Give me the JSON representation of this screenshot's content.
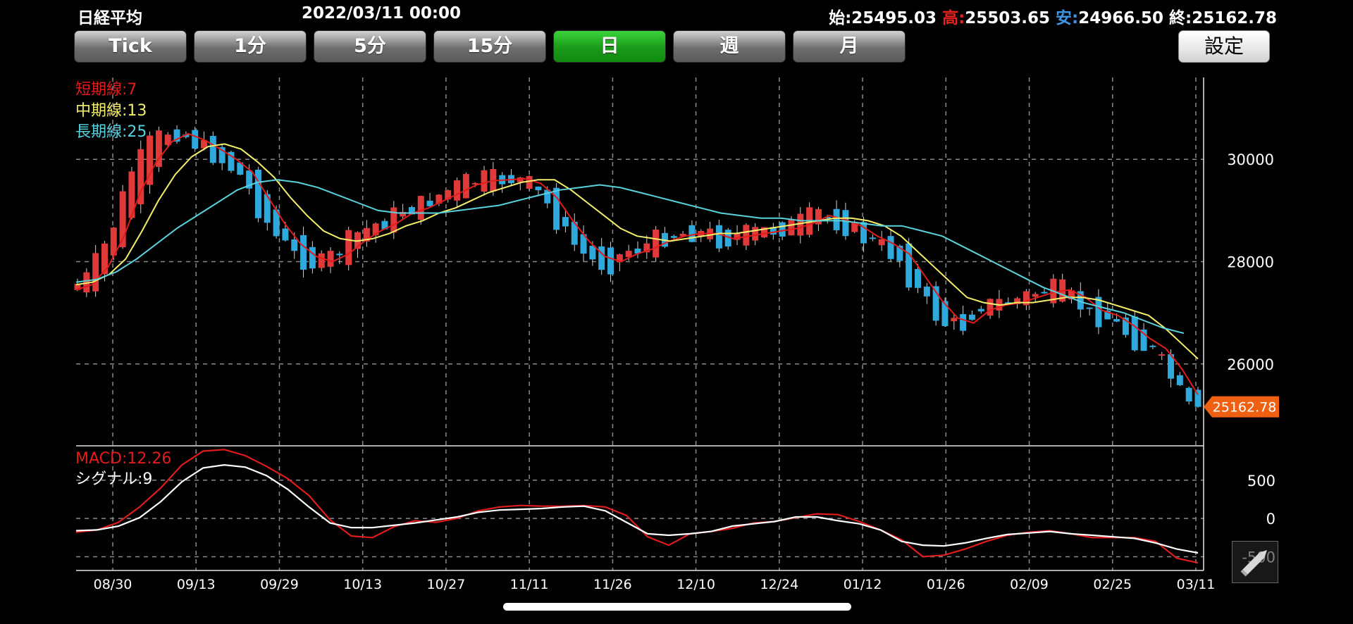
{
  "header": {
    "title": "日経平均",
    "datetime": "2022/03/11 00:00",
    "open_label": "始:",
    "open_value": "25495.03",
    "high_label": "高:",
    "high_value": "25503.65",
    "low_label": "安:",
    "low_value": "24966.50",
    "close_label": "終:",
    "close_value": "25162.78"
  },
  "timeframes": [
    {
      "label": "Tick",
      "active": false
    },
    {
      "label": "1分",
      "active": false
    },
    {
      "label": "5分",
      "active": false
    },
    {
      "label": "15分",
      "active": false
    },
    {
      "label": "日",
      "active": true
    },
    {
      "label": "週",
      "active": false
    },
    {
      "label": "月",
      "active": false
    }
  ],
  "settings_label": "設定",
  "icons": {
    "pencil": "pencil-icon"
  },
  "colors": {
    "up_candle": "#e0393a",
    "down_candle": "#2fa8dc",
    "short_ma": "#e01c1c",
    "mid_ma": "#f3ef6a",
    "long_ma": "#5ad2dc",
    "macd": "#e01c1c",
    "signal": "#ffffff",
    "price_tag": "#f06012",
    "active_button": "#1a9a1a"
  },
  "chart_data": [
    {
      "type": "candlestick",
      "title": "",
      "legend": [
        {
          "label": "短期線:7",
          "color": "#e01c1c"
        },
        {
          "label": "中期線:13",
          "color": "#f3ef6a"
        },
        {
          "label": "長期線:25",
          "color": "#5ad2dc"
        }
      ],
      "legend_position": "top-left",
      "x_tick_labels": [
        "08/30",
        "09/13",
        "09/29",
        "10/13",
        "10/27",
        "11/11",
        "11/26",
        "12/10",
        "12/24",
        "01/12",
        "01/26",
        "02/09",
        "02/25",
        "03/11"
      ],
      "y_ticks": [
        26000,
        28000,
        30000
      ],
      "ylim": [
        24400,
        31600
      ],
      "grid": true,
      "current_price_label": "25162.78",
      "series": [
        {
          "name": "短期線:7",
          "values": [
            27450,
            27550,
            27900,
            28500,
            29350,
            29950,
            30350,
            30500,
            30380,
            30200,
            30000,
            29750,
            29250,
            28750,
            28350,
            28100,
            28000,
            28150,
            28400,
            28600,
            28750,
            28950,
            29050,
            29200,
            29350,
            29500,
            29580,
            29600,
            29620,
            29530,
            29250,
            28800,
            28400,
            28100,
            28000,
            28150,
            28250,
            28400,
            28500,
            28550,
            28550,
            28450,
            28500,
            28550,
            28600,
            28650,
            28750,
            28900,
            28820,
            28700,
            28500,
            28350,
            28150,
            27700,
            27250,
            26900,
            26800,
            27050,
            27150,
            27200,
            27300,
            27400,
            27450,
            27300,
            27050,
            26950,
            26750,
            26500,
            26300,
            25900,
            25400
          ]
        },
        {
          "name": "中期線:13",
          "values": [
            27550,
            27600,
            27750,
            28050,
            28600,
            29200,
            29700,
            30050,
            30250,
            30300,
            30200,
            29950,
            29650,
            29250,
            28900,
            28600,
            28450,
            28400,
            28450,
            28550,
            28700,
            28800,
            28950,
            29050,
            29200,
            29350,
            29450,
            29550,
            29600,
            29600,
            29400,
            29150,
            28900,
            28650,
            28500,
            28450,
            28400,
            28450,
            28500,
            28550,
            28550,
            28600,
            28650,
            28700,
            28750,
            28800,
            28850,
            28850,
            28800,
            28700,
            28500,
            28200,
            27900,
            27600,
            27300,
            27200,
            27150,
            27200,
            27200,
            27250,
            27300,
            27300,
            27250,
            27150,
            27050,
            26950,
            26700,
            26400,
            26100
          ]
        },
        {
          "name": "長期線:25",
          "values": [
            27600,
            27650,
            27800,
            28050,
            28350,
            28650,
            28900,
            29150,
            29400,
            29550,
            29600,
            29550,
            29450,
            29300,
            29150,
            29000,
            28950,
            28950,
            28950,
            29000,
            29050,
            29100,
            29200,
            29300,
            29400,
            29450,
            29500,
            29450,
            29350,
            29250,
            29150,
            29050,
            28950,
            28900,
            28850,
            28850,
            28800,
            28800,
            28800,
            28750,
            28700,
            28700,
            28600,
            28500,
            28300,
            28100,
            27900,
            27700,
            27500,
            27350,
            27200,
            27100,
            27000,
            26850,
            26700,
            26600
          ]
        }
      ]
    },
    {
      "type": "line",
      "title": "",
      "legend": [
        {
          "label": "MACD:12.26",
          "color": "#e01c1c"
        },
        {
          "label": "シグナル:9",
          "color": "#ffffff"
        }
      ],
      "legend_position": "top-left",
      "y_ticks": [
        500,
        0,
        -500
      ],
      "ylim": [
        -680,
        940
      ],
      "grid": true,
      "series": [
        {
          "name": "MACD:12.26",
          "values": [
            -180,
            -150,
            -50,
            150,
            400,
            700,
            880,
            900,
            820,
            680,
            520,
            300,
            -20,
            -230,
            -250,
            -110,
            -30,
            -50,
            0,
            100,
            150,
            170,
            160,
            160,
            170,
            150,
            40,
            -240,
            -350,
            -200,
            -170,
            -130,
            -60,
            -40,
            10,
            60,
            50,
            -40,
            -150,
            -280,
            -500,
            -480,
            -400,
            -300,
            -220,
            -180,
            -160,
            -200,
            -250,
            -250,
            -250,
            -300,
            -520,
            -580
          ]
        },
        {
          "name": "シグナル:9",
          "values": [
            -160,
            -150,
            -100,
            10,
            220,
            480,
            660,
            700,
            670,
            560,
            380,
            150,
            -60,
            -120,
            -120,
            -90,
            -60,
            -20,
            20,
            80,
            110,
            120,
            130,
            150,
            160,
            100,
            -50,
            -200,
            -220,
            -200,
            -170,
            -100,
            -70,
            -40,
            20,
            20,
            -30,
            -70,
            -150,
            -300,
            -350,
            -360,
            -320,
            -260,
            -210,
            -190,
            -170,
            -200,
            -220,
            -240,
            -260,
            -320,
            -400,
            -450
          ]
        }
      ]
    }
  ]
}
